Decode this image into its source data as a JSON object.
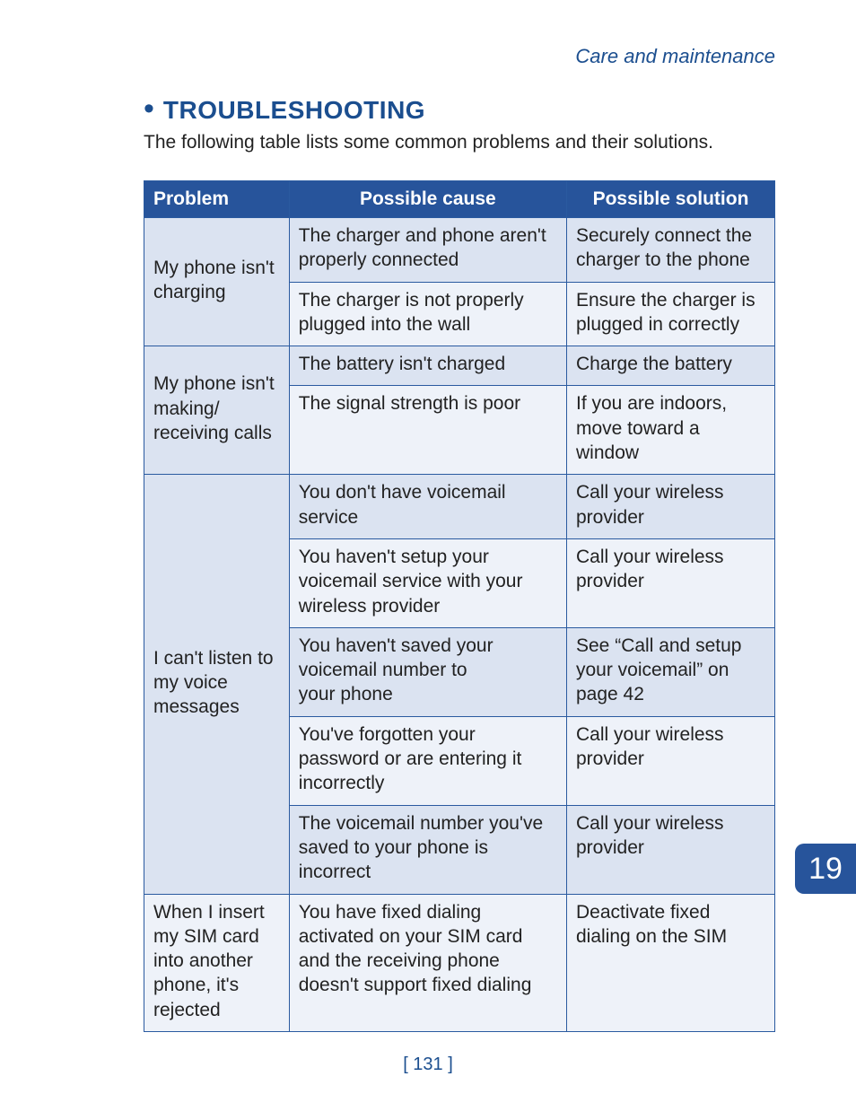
{
  "section_label": "Care and maintenance",
  "heading": "TROUBLESHOOTING",
  "intro": "The following table lists some common problems and their solutions.",
  "table": {
    "columns": [
      "Problem",
      "Possible cause",
      "Possible solution"
    ],
    "groups": [
      {
        "problem": "My phone isn't charging",
        "rows": [
          {
            "cause": "The charger and phone aren't properly connected",
            "solution": "Securely connect the charger to the phone"
          },
          {
            "cause": "The charger is not properly plugged into the wall",
            "solution": "Ensure the charger is plugged in correctly"
          }
        ]
      },
      {
        "problem": "My phone isn't making/ receiving calls",
        "rows": [
          {
            "cause": "The battery isn't charged",
            "solution": "Charge the battery"
          },
          {
            "cause": "The signal strength is poor",
            "solution": "If you are indoors, move toward a window"
          }
        ]
      },
      {
        "problem": "I can't listen to my voice messages",
        "rows": [
          {
            "cause": "You don't have voicemail service",
            "solution": "Call your wireless provider"
          },
          {
            "cause": "You haven't setup your voicemail service with your wireless provider",
            "solution": "Call your wireless provider"
          },
          {
            "cause": "You haven't saved your voicemail number to your phone",
            "solution": "See “Call and setup your voicemail” on page 42"
          },
          {
            "cause": "You've forgotten your password or are entering it incorrectly",
            "solution": "Call your wireless provider"
          },
          {
            "cause": "The voicemail number you've saved to your phone is incorrect",
            "solution": "Call your wireless provider"
          }
        ]
      },
      {
        "problem": "When I insert my SIM card into another phone, it's rejected",
        "rows": [
          {
            "cause": "You have fixed dialing activated on your SIM card and the receiving phone doesn't support fixed dialing",
            "solution": "Deactivate fixed dialing on the SIM"
          }
        ]
      }
    ]
  },
  "page_number": "[ 131 ]",
  "chapter_tab": "19",
  "colors": {
    "brand_blue": "#1b4e8f",
    "header_bg": "#27549b",
    "row_a": "#dbe3f1",
    "row_b": "#eef2f9",
    "border": "#2a5aa0"
  }
}
